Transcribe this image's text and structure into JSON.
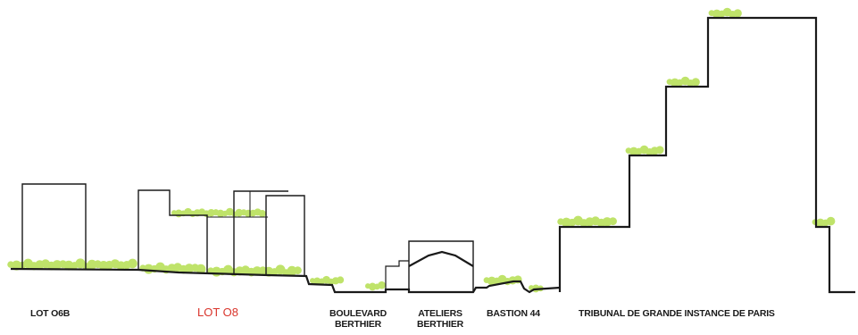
{
  "colors": {
    "line": "#1a1a1a",
    "vegetation": "#bfe36a",
    "highlight_label": "#d9342b"
  },
  "labels": {
    "lot_o6b": "LOT O6B",
    "lot_o8": "LOT O8",
    "boulevard_line1": "BOULEVARD",
    "boulevard_line2": "BERTHIER",
    "ateliers_line1": "ATELIERS",
    "ateliers_line2": "BERTHIER",
    "bastion": "BASTION 44",
    "tribunal": "TRIBUNAL DE GRANDE INSTANCE DE PARIS"
  }
}
